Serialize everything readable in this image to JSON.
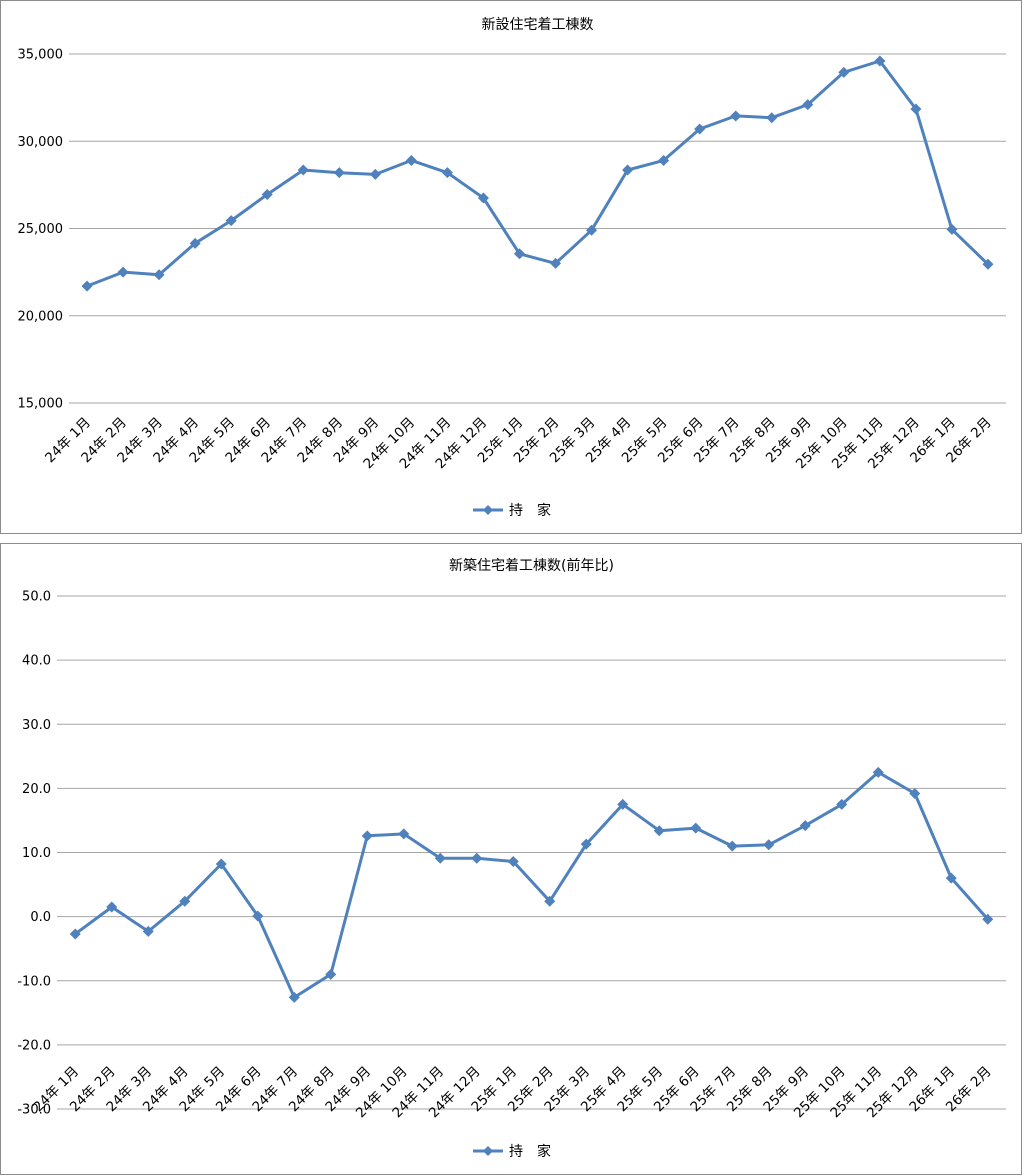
{
  "chart_data": [
    {
      "type": "line",
      "title": "新設住宅着工棟数",
      "ylim": [
        15000,
        35000
      ],
      "yticks": [
        "15,000",
        "20,000",
        "25,000",
        "30,000",
        "35,000"
      ],
      "yticks_values": [
        15000,
        20000,
        25000,
        30000,
        35000
      ],
      "grid": true,
      "legend_position": "bottom",
      "categories": [
        "24年 1月",
        "24年 2月",
        "24年 3月",
        "24年 4月",
        "24年 5月",
        "24年 6月",
        "24年 7月",
        "24年 8月",
        "24年 9月",
        "24年 10月",
        "24年 11月",
        "24年 12月",
        "25年 1月",
        "25年 2月",
        "25年 3月",
        "25年 4月",
        "25年 5月",
        "25年 6月",
        "25年 7月",
        "25年 8月",
        "25年 9月",
        "25年 10月",
        "25年 11月",
        "25年 12月",
        "26年 1月",
        "26年 2月"
      ],
      "series": [
        {
          "name": "持　家",
          "color": "#4f81bd",
          "values": [
            21700,
            22500,
            22350,
            24150,
            25450,
            26950,
            28350,
            28200,
            28100,
            28900,
            28200,
            26750,
            23550,
            23000,
            24900,
            28350,
            28900,
            30700,
            31450,
            31350,
            32100,
            33950,
            34600,
            31850,
            24950,
            22950
          ]
        }
      ]
    },
    {
      "type": "line",
      "title": "新築住宅着工棟数(前年比)",
      "ylim": [
        -30,
        50
      ],
      "yticks": [
        "-30.0",
        "-20.0",
        "-10.0",
        "0.0",
        "10.0",
        "20.0",
        "30.0",
        "40.0",
        "50.0"
      ],
      "yticks_values": [
        -30,
        -20,
        -10,
        0,
        10,
        20,
        30,
        40,
        50
      ],
      "negative_tick_color": "#ff0000",
      "grid": true,
      "legend_position": "bottom",
      "categories": [
        "24年 1月",
        "24年 2月",
        "24年 3月",
        "24年 4月",
        "24年 5月",
        "24年 6月",
        "24年 7月",
        "24年 8月",
        "24年 9月",
        "24年 10月",
        "24年 11月",
        "24年 12月",
        "25年 1月",
        "25年 2月",
        "25年 3月",
        "25年 4月",
        "25年 5月",
        "25年 6月",
        "25年 7月",
        "25年 8月",
        "25年 9月",
        "25年 10月",
        "25年 11月",
        "25年 12月",
        "26年 1月",
        "26年 2月"
      ],
      "series": [
        {
          "name": "持　家",
          "color": "#4f81bd",
          "values": [
            -2.7,
            1.5,
            -2.3,
            2.4,
            8.2,
            0.1,
            -12.6,
            -9.0,
            12.6,
            12.9,
            9.1,
            9.1,
            8.6,
            2.4,
            11.3,
            17.5,
            13.4,
            13.8,
            11.0,
            11.2,
            14.2,
            17.5,
            22.5,
            19.2,
            6.0,
            -0.4
          ]
        }
      ]
    }
  ]
}
